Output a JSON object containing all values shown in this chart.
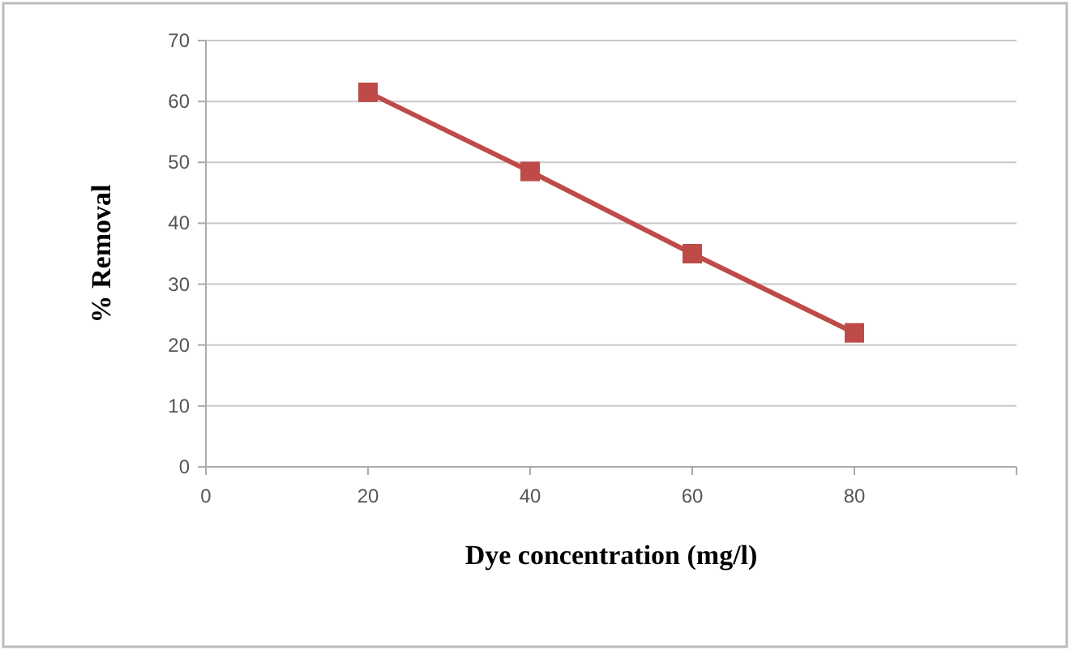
{
  "chart_data": {
    "type": "line",
    "xlabel": "Dye concentration (mg/l)",
    "ylabel": "% Removal",
    "x": [
      20,
      40,
      60,
      80
    ],
    "series": [
      {
        "color": "#be4b48",
        "values": [
          61.5,
          48.5,
          35,
          22
        ]
      }
    ],
    "xlim": [
      0,
      100
    ],
    "xticks": [
      0,
      20,
      40,
      60,
      80,
      {
        "value": 100,
        "label": null
      }
    ],
    "ylim": [
      0,
      70
    ],
    "yticks": [
      0,
      10,
      20,
      30,
      40,
      50,
      60,
      70
    ],
    "grid": "y",
    "marker": "square",
    "line_style": "solid"
  }
}
